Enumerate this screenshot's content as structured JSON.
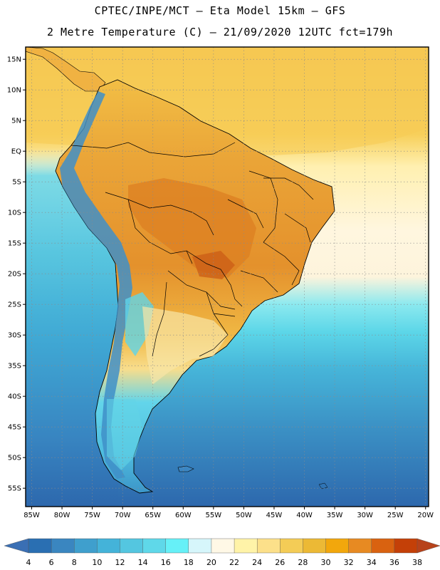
{
  "header": {
    "line1": "CPTEC/INPE/MCT –  Eta Model 15km – GFS",
    "line2": "2 Metre Temperature (C) – 21/09/2020 12UTC fct=179h"
  },
  "map": {
    "lat_labels": [
      "15N",
      "10N",
      "5N",
      "EQ",
      "5S",
      "10S",
      "15S",
      "20S",
      "25S",
      "30S",
      "35S",
      "40S",
      "45S",
      "50S",
      "55S"
    ],
    "lat_values": [
      15,
      10,
      5,
      0,
      -5,
      -10,
      -15,
      -20,
      -25,
      -30,
      -35,
      -40,
      -45,
      -50,
      -55
    ],
    "lon_labels": [
      "85W",
      "80W",
      "75W",
      "70W",
      "65W",
      "60W",
      "55W",
      "50W",
      "45W",
      "40W",
      "35W",
      "30W",
      "25W",
      "20W"
    ],
    "lon_values": [
      -85,
      -80,
      -75,
      -70,
      -65,
      -60,
      -55,
      -50,
      -45,
      -40,
      -35,
      -30,
      -25,
      -20
    ],
    "lon_range": [
      -86,
      -19.5
    ],
    "lat_range": [
      -58,
      17
    ]
  },
  "colorbar": {
    "labels": [
      "4",
      "6",
      "8",
      "10",
      "12",
      "14",
      "16",
      "18",
      "20",
      "22",
      "24",
      "26",
      "28",
      "30",
      "32",
      "34",
      "36",
      "38"
    ],
    "colors": [
      "#2a6fb2",
      "#3a86c0",
      "#3f9fcd",
      "#44b3d9",
      "#54c6e0",
      "#5fd8e9",
      "#66f0f7",
      "#d6f6fb",
      "#fff8e6",
      "#fff3a8",
      "#fce08a",
      "#f4cc56",
      "#ecb935",
      "#f2a70c",
      "#e78a22",
      "#d96210",
      "#c44008"
    ],
    "low_color": "#3a6fb4",
    "high_color": "#b7421a"
  },
  "colors": {
    "ocean_deep": "#2e6fb0",
    "ocean_mid": "#3c96c9",
    "ocean_light": "#4fc0dc",
    "ocean_cyan": "#5ee6f0",
    "land_hot": "#e99a2f",
    "land_warm": "#f3c04a",
    "land_mild": "#f8da7a",
    "andes": "#3a8cc7"
  }
}
